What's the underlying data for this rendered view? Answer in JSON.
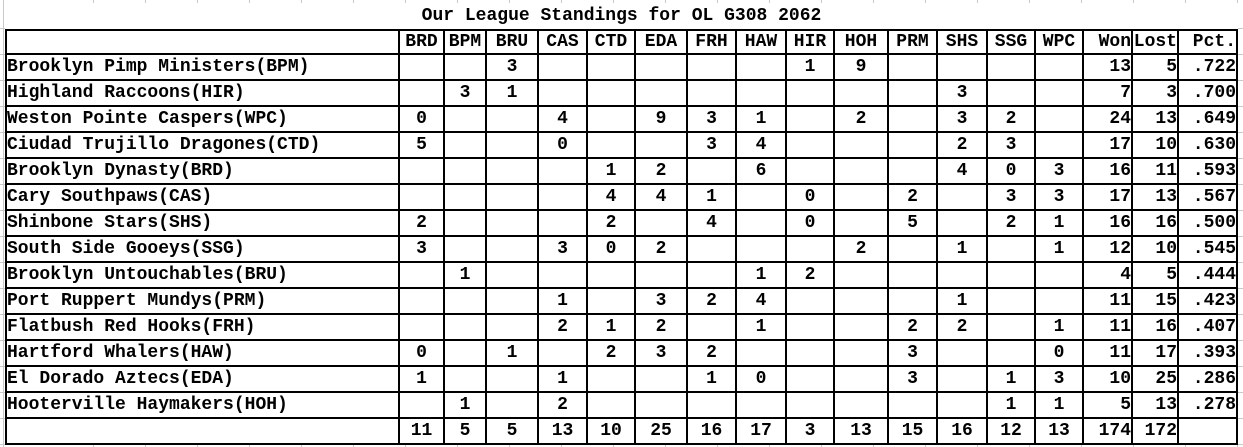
{
  "title": "Our League Standings for OL G308 2062",
  "colors": {
    "background": "#ffffff",
    "table_border": "#000000",
    "text": "#000000",
    "margin_gridline": "#c9c9c9"
  },
  "table": {
    "team_column_header": "",
    "columns": [
      "BRD",
      "BPM",
      "BRU",
      "CAS",
      "CTD",
      "EDA",
      "FRH",
      "HAW",
      "HIR",
      "HOH",
      "PRM",
      "SHS",
      "SSG",
      "WPC",
      "Won",
      "Lost",
      "Pct."
    ],
    "rows": [
      {
        "team": "Brooklyn Pimp Ministers(BPM)",
        "values": [
          "",
          "",
          "3",
          "",
          "",
          "",
          "",
          "",
          "1",
          "9",
          "",
          "",
          "",
          "",
          "13",
          "5",
          ".722"
        ]
      },
      {
        "team": "Highland Raccoons(HIR)",
        "values": [
          "",
          "3",
          "1",
          "",
          "",
          "",
          "",
          "",
          "",
          "",
          "",
          "3",
          "",
          "",
          "7",
          "3",
          ".700"
        ]
      },
      {
        "team": "Weston Pointe Caspers(WPC)",
        "values": [
          "0",
          "",
          "",
          "4",
          "",
          "9",
          "3",
          "1",
          "",
          "2",
          "",
          "3",
          "2",
          "",
          "24",
          "13",
          ".649"
        ]
      },
      {
        "team": "Ciudad Trujillo Dragones(CTD)",
        "values": [
          "5",
          "",
          "",
          "0",
          "",
          "",
          "3",
          "4",
          "",
          "",
          "",
          "2",
          "3",
          "",
          "17",
          "10",
          ".630"
        ]
      },
      {
        "team": "Brooklyn Dynasty(BRD)",
        "values": [
          "",
          "",
          "",
          "",
          "1",
          "2",
          "",
          "6",
          "",
          "",
          "",
          "4",
          "0",
          "3",
          "16",
          "11",
          ".593"
        ]
      },
      {
        "team": "Cary Southpaws(CAS)",
        "values": [
          "",
          "",
          "",
          "",
          "4",
          "4",
          "1",
          "",
          "0",
          "",
          "2",
          "",
          "3",
          "3",
          "17",
          "13",
          ".567"
        ]
      },
      {
        "team": "Shinbone Stars(SHS)",
        "values": [
          "2",
          "",
          "",
          "",
          "2",
          "",
          "4",
          "",
          "0",
          "",
          "5",
          "",
          "2",
          "1",
          "16",
          "16",
          ".500"
        ]
      },
      {
        "team": "South Side Gooeys(SSG)",
        "values": [
          "3",
          "",
          "",
          "3",
          "0",
          "2",
          "",
          "",
          "",
          "2",
          "",
          "1",
          "",
          "1",
          "12",
          "10",
          ".545"
        ]
      },
      {
        "team": "Brooklyn Untouchables(BRU)",
        "values": [
          "",
          "1",
          "",
          "",
          "",
          "",
          "",
          "1",
          "2",
          "",
          "",
          "",
          "",
          "",
          "4",
          "5",
          ".444"
        ]
      },
      {
        "team": "Port Ruppert Mundys(PRM)",
        "values": [
          "",
          "",
          "",
          "1",
          "",
          "3",
          "2",
          "4",
          "",
          "",
          "",
          "1",
          "",
          "",
          "11",
          "15",
          ".423"
        ]
      },
      {
        "team": "Flatbush Red Hooks(FRH)",
        "values": [
          "",
          "",
          "",
          "2",
          "1",
          "2",
          "",
          "1",
          "",
          "",
          "2",
          "2",
          "",
          "1",
          "11",
          "16",
          ".407"
        ]
      },
      {
        "team": "Hartford Whalers(HAW)",
        "values": [
          "0",
          "",
          "1",
          "",
          "2",
          "3",
          "2",
          "",
          "",
          "",
          "3",
          "",
          "",
          "0",
          "11",
          "17",
          ".393"
        ]
      },
      {
        "team": "El Dorado Aztecs(EDA)",
        "values": [
          "1",
          "",
          "",
          "1",
          "",
          "",
          "1",
          "0",
          "",
          "",
          "3",
          "",
          "1",
          "3",
          "10",
          "25",
          ".286"
        ]
      },
      {
        "team": "Hooterville Haymakers(HOH)",
        "values": [
          "",
          "1",
          "",
          "2",
          "",
          "",
          "",
          "",
          "",
          "",
          "",
          "",
          "1",
          "1",
          "5",
          "13",
          ".278"
        ]
      }
    ],
    "totals": {
      "team": "",
      "values": [
        "11",
        "5",
        "5",
        "13",
        "10",
        "25",
        "16",
        "17",
        "3",
        "13",
        "15",
        "16",
        "12",
        "13",
        "174",
        "172",
        ""
      ]
    }
  }
}
